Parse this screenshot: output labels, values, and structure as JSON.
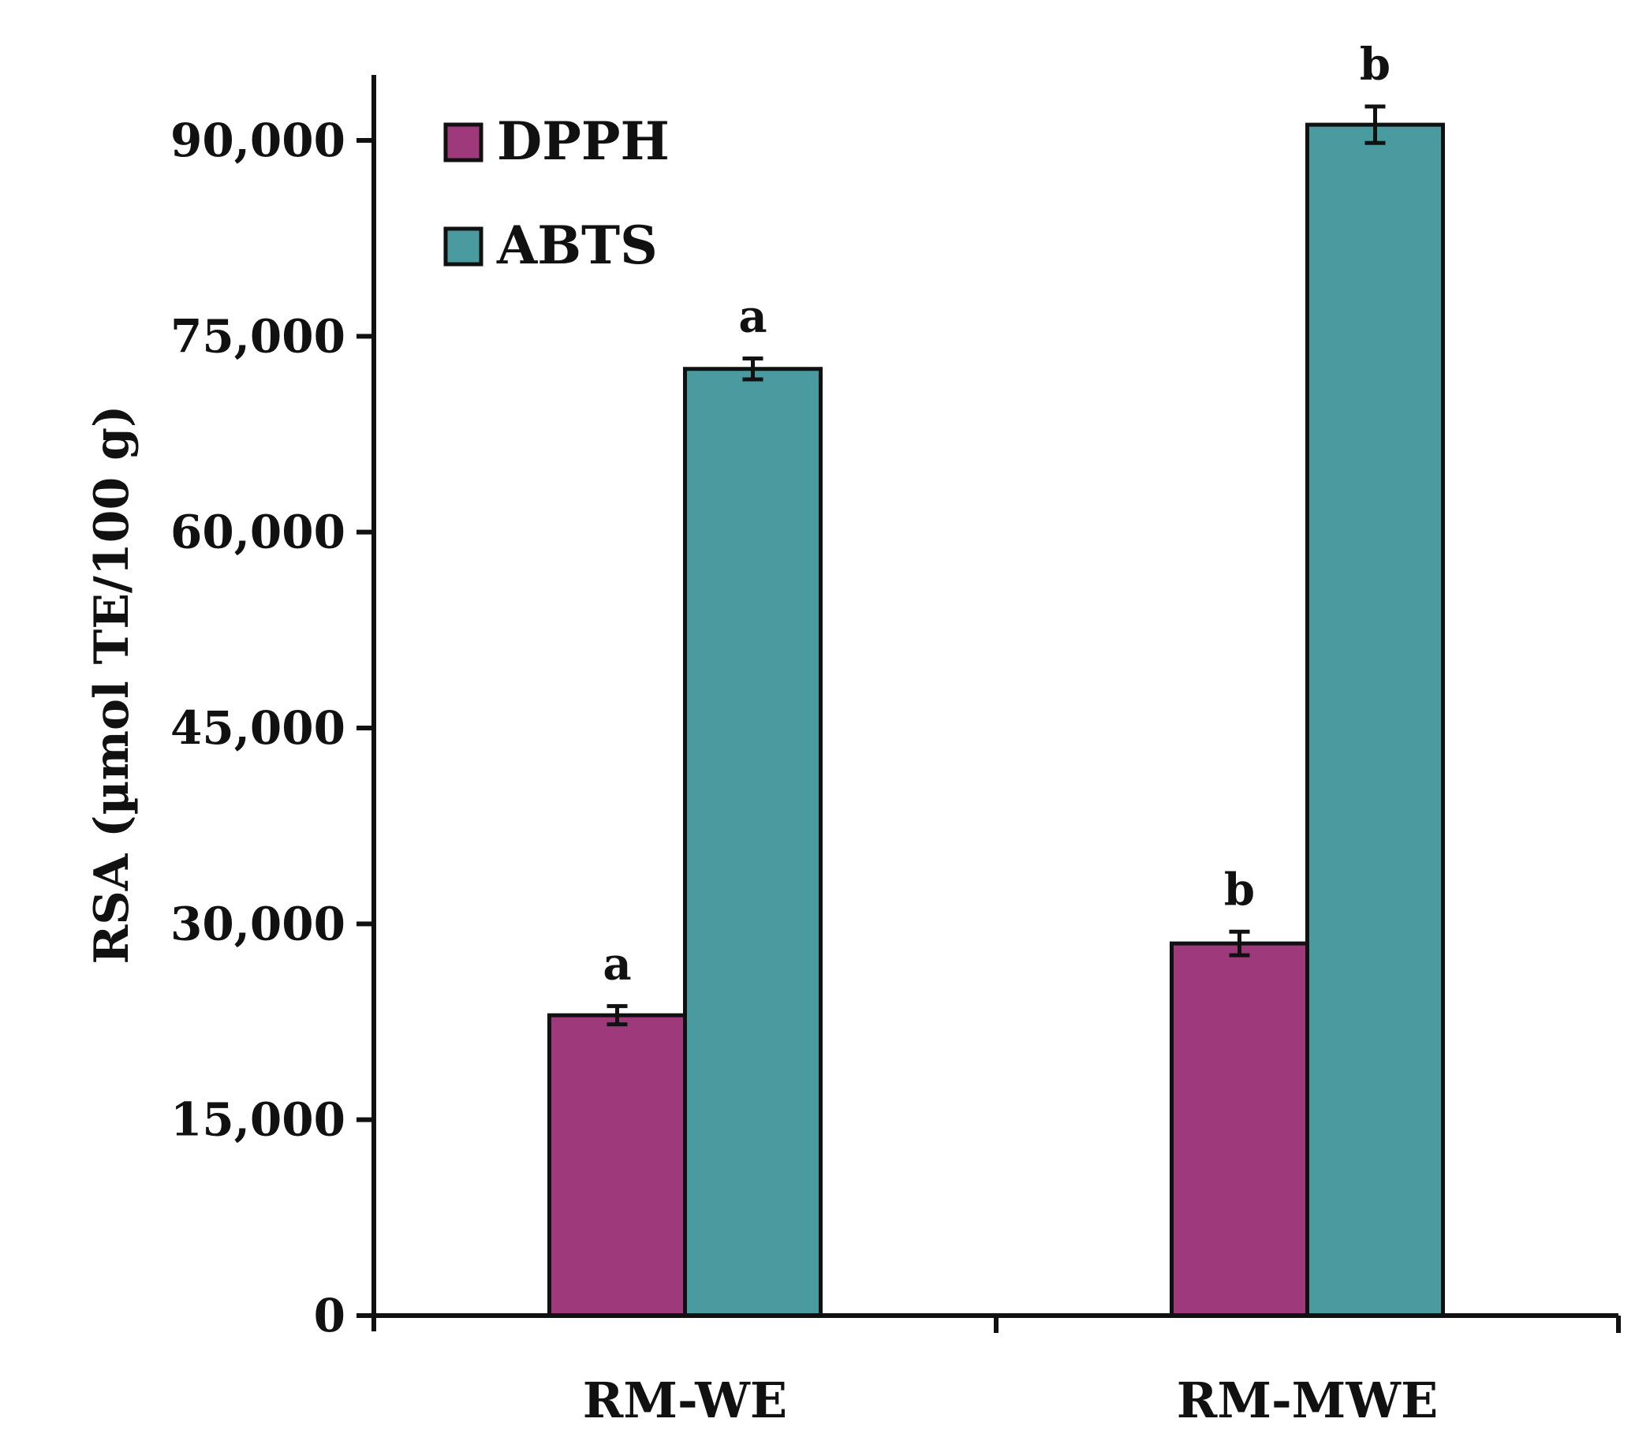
{
  "chart_data": {
    "type": "bar",
    "title": "",
    "xlabel": "",
    "ylabel": "RSA (µmol TE/100 g)",
    "ylim": [
      0,
      95000
    ],
    "yticks": [
      0,
      15000,
      30000,
      45000,
      60000,
      75000,
      90000
    ],
    "ytick_labels": [
      "0",
      "15,000",
      "30,000",
      "45,000",
      "60,000",
      "75,000",
      "90,000"
    ],
    "categories": [
      "RM-WE",
      "RM-MWE"
    ],
    "series": [
      {
        "name": "DPPH",
        "color": "#9e3a7b",
        "values": [
          23000,
          28500
        ],
        "errors": [
          700,
          900
        ],
        "letters": [
          "a",
          "b"
        ]
      },
      {
        "name": "ABTS",
        "color": "#4a9ba0",
        "values": [
          72500,
          91200
        ],
        "errors": [
          800,
          1400
        ],
        "letters": [
          "a",
          "b"
        ]
      }
    ],
    "legend_position": "top-left",
    "grid": false
  }
}
